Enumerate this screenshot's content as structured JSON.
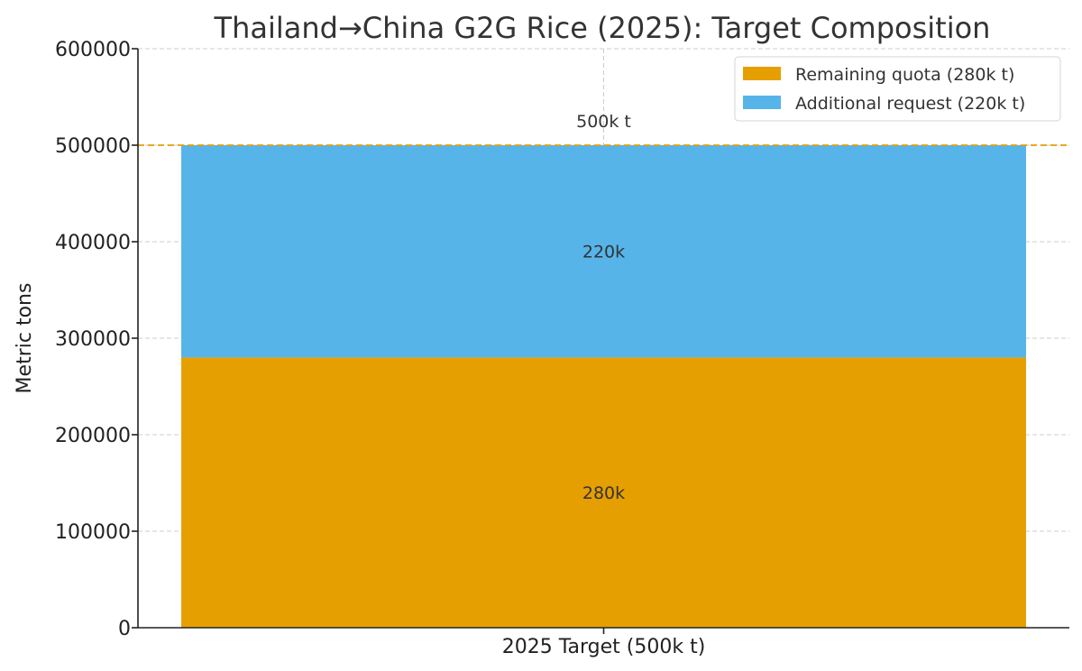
{
  "chart_data": {
    "type": "bar",
    "stacked": true,
    "title": "Thailand→China G2G Rice (2025): Target Composition",
    "xlabel": "",
    "ylabel": "Metric tons",
    "categories": [
      "2025 Target (500k t)"
    ],
    "ylim": [
      0,
      600000
    ],
    "yticks": [
      0,
      100000,
      200000,
      300000,
      400000,
      500000,
      600000
    ],
    "ytick_labels": [
      "0",
      "100000",
      "200000",
      "300000",
      "400000",
      "500000",
      "600000"
    ],
    "grid": true,
    "legend_position": "top-right",
    "series": [
      {
        "name": "Remaining quota (280k t)",
        "values": [
          280000
        ],
        "color": "#E69F00",
        "value_labels": [
          "280k"
        ]
      },
      {
        "name": "Additional request (220k t)",
        "values": [
          220000
        ],
        "color": "#56B4E9",
        "value_labels": [
          "220k"
        ]
      }
    ],
    "reference_line": {
      "y": 500000,
      "label": "500k t",
      "color": "#E69F00",
      "style": "dashed"
    }
  }
}
